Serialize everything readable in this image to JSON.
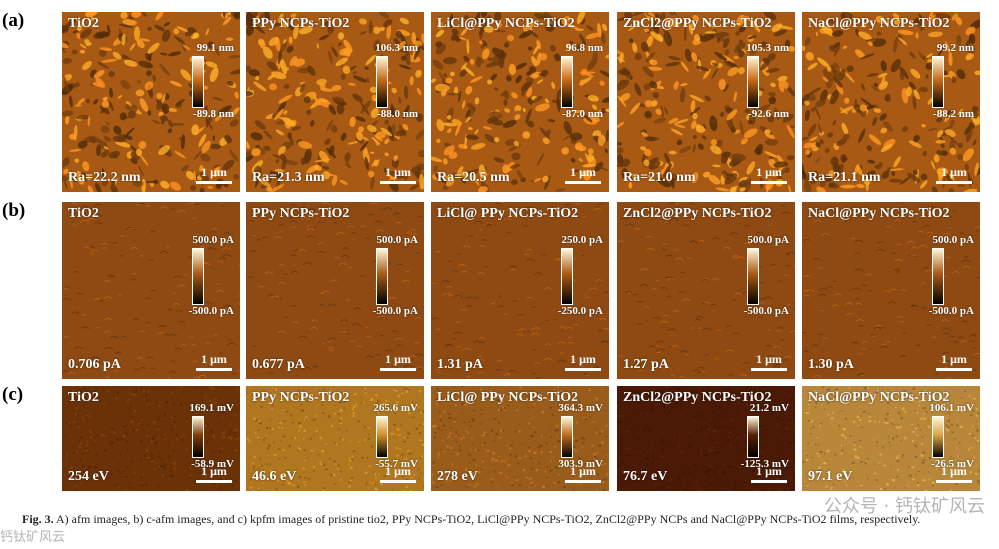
{
  "rows": [
    {
      "label": "(a)",
      "kind": "afm",
      "base_color": "#a85a14",
      "panels": [
        {
          "title": "TiO2",
          "cmax": "99.1 nm",
          "cmin": "-89.8 nm",
          "metric": "Ra=22.2 nm",
          "scale": "1 μm"
        },
        {
          "title": "PPy NCPs-TiO2",
          "cmax": "106.3 nm",
          "cmin": "-88.0 nm",
          "metric": "Ra=21.3 nm",
          "scale": "1 μm"
        },
        {
          "title": "LiCl@PPy NCPs-TiO2",
          "cmax": "96.8 nm",
          "cmin": "-87.0 nm",
          "metric": "Ra=20.5 nm",
          "scale": "1 μm"
        },
        {
          "title": "ZnCl2@PPy NCPs-TiO2",
          "cmax": "105.3 nm",
          "cmin": "-92.6 nm",
          "metric": "Ra=21.0 nm",
          "scale": "1 μm"
        },
        {
          "title": "NaCl@PPy NCPs-TiO2",
          "cmax": "99.2 nm",
          "cmin": "-88.2 nm",
          "metric": "Ra=21.1 nm",
          "scale": "1 μm"
        }
      ]
    },
    {
      "label": "(b)",
      "kind": "cafm",
      "base_color": "#8e4a12",
      "panels": [
        {
          "title": "TiO2",
          "cmax": "500.0 pA",
          "cmin": "-500.0 pA",
          "metric": "0.706 pA",
          "scale": "1 μm"
        },
        {
          "title": "PPy NCPs-TiO2",
          "cmax": "500.0 pA",
          "cmin": "-500.0 pA",
          "metric": "0.677 pA",
          "scale": "1 μm"
        },
        {
          "title": "LiCl@ PPy NCPs-TiO2",
          "cmax": "250.0 pA",
          "cmin": "-250.0 pA",
          "metric": "1.31 pA",
          "scale": "1 μm"
        },
        {
          "title": "ZnCl2@PPy NCPs-TiO2",
          "cmax": "500.0 pA",
          "cmin": "-500.0 pA",
          "metric": "1.27 pA",
          "scale": "1 μm"
        },
        {
          "title": "NaCl@PPy NCPs-TiO2",
          "cmax": "500.0 pA",
          "cmin": "-500.0 pA",
          "metric": "1.30 pA",
          "scale": "1 μm"
        }
      ]
    },
    {
      "label": "(c)",
      "kind": "kpfm",
      "panels": [
        {
          "title": "TiO2",
          "cmax": "169.1 mV",
          "cmin": "-58.9 mV",
          "metric": "254 eV",
          "scale": "1 μm",
          "base_color": "#6b3208"
        },
        {
          "title": "PPy NCPs-TiO2",
          "cmax": "265.6 mV",
          "cmin": "-55.7 mV",
          "metric": "46.6 eV",
          "scale": "1 μm",
          "base_color": "#b07620"
        },
        {
          "title": "LiCl@ PPy NCPs-TiO2",
          "cmax": "364.3 mV",
          "cmin": "303.9 mV",
          "metric": "278 eV",
          "scale": "1 μm",
          "base_color": "#9a5c1a"
        },
        {
          "title": "ZnCl2@PPy NCPs-TiO2",
          "cmax": "21.2 mV",
          "cmin": "-125.3 mV",
          "metric": "76.7 eV",
          "scale": "1 μm",
          "base_color": "#4a1a06"
        },
        {
          "title": "NaCl@PPy NCPs-TiO2",
          "cmax": "106.1 mV",
          "cmin": "-26.5 mV",
          "metric": "97.1 eV",
          "scale": "1 μm",
          "base_color": "#b8873a"
        }
      ]
    }
  ],
  "caption": {
    "prefix": "Fig. 3.",
    "text": "A) afm images, b) c-afm images, and c) kpfm images of pristine tio2, PPy NCPs-TiO2, LiCl@PPy NCPs-TiO2, ZnCl2@PPy NCPs and NaCl@PPy NCPs-TiO2 films, respectively."
  },
  "watermark": "公众号 · 钙钛矿风云",
  "watermark_left": "钙钛矿风云"
}
